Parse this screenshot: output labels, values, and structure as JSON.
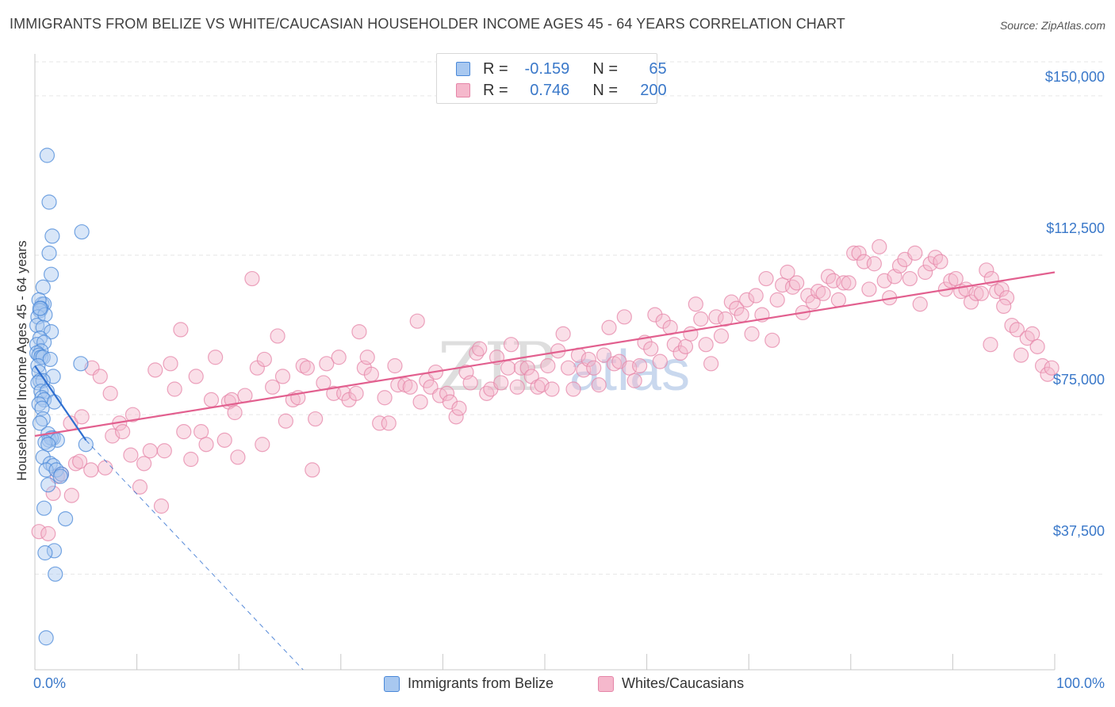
{
  "title": "IMMIGRANTS FROM BELIZE VS WHITE/CAUCASIAN HOUSEHOLDER INCOME AGES 45 - 64 YEARS CORRELATION CHART",
  "source": "Source: ZipAtlas.com",
  "watermark": {
    "zip": "ZIP",
    "atlas": "atlas"
  },
  "colors": {
    "blue_fill": "#a8c8f0",
    "blue_stroke": "#4a88d8",
    "blue_line": "#2f6fd0",
    "pink_fill": "#f5b8cc",
    "pink_stroke": "#e585a8",
    "pink_line": "#e2608f",
    "accent_text": "#3a78c9",
    "grid": "#e6e6e6"
  },
  "legend": {
    "r_label": "R =",
    "n_label": "N =",
    "rows": [
      {
        "series": "Immigrants from Belize",
        "r": "-0.159",
        "n": "65"
      },
      {
        "series": "Whites/Caucasians",
        "r": "0.746",
        "n": "200"
      }
    ]
  },
  "chart_data": {
    "type": "scatter",
    "title": "IMMIGRANTS FROM BELIZE VS WHITE/CAUCASIAN HOUSEHOLDER INCOME AGES 45 - 64 YEARS CORRELATION CHART",
    "xlabel": "",
    "ylabel": "Householder Income Ages 45 - 64 years",
    "xlim": [
      0,
      100
    ],
    "ylim": [
      15000,
      158000
    ],
    "x_tick_labels": [
      "0.0%",
      "100.0%"
    ],
    "y_ticks": [
      37500,
      75000,
      112500,
      150000
    ],
    "y_tick_labels": [
      "$37,500",
      "$75,000",
      "$112,500",
      "$150,000"
    ],
    "grid": true,
    "legend_position": "top-center",
    "series": [
      {
        "name": "Immigrants from Belize",
        "r": -0.159,
        "n": 65,
        "trend": {
          "x0": 0,
          "y0": 86500,
          "x1": 5,
          "y1": 69000,
          "x_dash_end": 26.3,
          "y_dash_end": 15000
        },
        "points": [
          [
            1.2,
            136000
          ],
          [
            1.4,
            125000
          ],
          [
            1.7,
            117000
          ],
          [
            1.4,
            113000
          ],
          [
            1.6,
            108000
          ],
          [
            0.8,
            105000
          ],
          [
            0.7,
            101000
          ],
          [
            0.9,
            101000
          ],
          [
            0.4,
            102000
          ],
          [
            0.6,
            100000
          ],
          [
            0.5,
            99500
          ],
          [
            0.3,
            98000
          ],
          [
            1.0,
            98500
          ],
          [
            0.2,
            96000
          ],
          [
            0.8,
            95500
          ],
          [
            1.6,
            94500
          ],
          [
            0.5,
            93000
          ],
          [
            0.2,
            91500
          ],
          [
            0.9,
            92000
          ],
          [
            0.6,
            90000
          ],
          [
            0.2,
            89500
          ],
          [
            0.4,
            89000
          ],
          [
            0.6,
            88500
          ],
          [
            0.8,
            88500
          ],
          [
            1.5,
            88000
          ],
          [
            0.3,
            86500
          ],
          [
            0.4,
            85000
          ],
          [
            1.8,
            84000
          ],
          [
            0.5,
            83000
          ],
          [
            0.8,
            83000
          ],
          [
            0.3,
            82500
          ],
          [
            0.6,
            80500
          ],
          [
            1.2,
            80500
          ],
          [
            0.7,
            79000
          ],
          [
            0.9,
            78500
          ],
          [
            1.9,
            78000
          ],
          [
            0.4,
            77500
          ],
          [
            0.7,
            76500
          ],
          [
            0.8,
            74000
          ],
          [
            0.5,
            73000
          ],
          [
            1.3,
            70500
          ],
          [
            1.8,
            69500
          ],
          [
            1.4,
            69000
          ],
          [
            1.6,
            69500
          ],
          [
            2.2,
            69000
          ],
          [
            1.0,
            68500
          ],
          [
            1.3,
            68000
          ],
          [
            0.8,
            65000
          ],
          [
            1.5,
            63500
          ],
          [
            1.8,
            63000
          ],
          [
            1.1,
            62000
          ],
          [
            2.1,
            62000
          ],
          [
            2.6,
            61000
          ],
          [
            2.5,
            60500
          ],
          [
            1.3,
            58500
          ],
          [
            0.9,
            53000
          ],
          [
            3.0,
            50500
          ],
          [
            1.9,
            43000
          ],
          [
            1.0,
            42500
          ],
          [
            2.0,
            37500
          ],
          [
            1.1,
            22500
          ],
          [
            4.6,
            118000
          ],
          [
            4.5,
            87000
          ],
          [
            5.0,
            68000
          ],
          [
            0.5,
            100000
          ]
        ]
      },
      {
        "name": "Whites/Caucasians",
        "r": 0.746,
        "n": 200,
        "trend": {
          "x0": 0,
          "y0": 70000,
          "x1": 100,
          "y1": 108500
        },
        "points": [
          [
            0.4,
            47500
          ],
          [
            1.3,
            47000
          ],
          [
            1.8,
            56500
          ],
          [
            2.6,
            61000
          ],
          [
            3.6,
            56000
          ],
          [
            2.2,
            60500
          ],
          [
            4.0,
            63500
          ],
          [
            4.4,
            64000
          ],
          [
            5.5,
            62000
          ],
          [
            6.9,
            62500
          ],
          [
            3.5,
            73000
          ],
          [
            4.6,
            74500
          ],
          [
            5.6,
            86000
          ],
          [
            6.4,
            84000
          ],
          [
            7.4,
            80000
          ],
          [
            7.6,
            70000
          ],
          [
            8.3,
            73000
          ],
          [
            8.6,
            71000
          ],
          [
            9.4,
            65500
          ],
          [
            9.6,
            75000
          ],
          [
            10.3,
            58000
          ],
          [
            10.7,
            63500
          ],
          [
            11.3,
            66500
          ],
          [
            11.8,
            85500
          ],
          [
            12.7,
            66500
          ],
          [
            12.4,
            53500
          ],
          [
            13.3,
            87000
          ],
          [
            13.7,
            81000
          ],
          [
            14.3,
            95000
          ],
          [
            14.6,
            71000
          ],
          [
            15.3,
            64500
          ],
          [
            15.8,
            84000
          ],
          [
            16.3,
            71000
          ],
          [
            16.8,
            68000
          ],
          [
            17.3,
            78500
          ],
          [
            17.7,
            88500
          ],
          [
            18.6,
            69000
          ],
          [
            19.0,
            78000
          ],
          [
            19.3,
            78500
          ],
          [
            19.6,
            75500
          ],
          [
            19.9,
            65000
          ],
          [
            20.6,
            79500
          ],
          [
            21.3,
            107000
          ],
          [
            21.8,
            86000
          ],
          [
            22.3,
            68000
          ],
          [
            22.5,
            88000
          ],
          [
            23.3,
            81500
          ],
          [
            23.8,
            93500
          ],
          [
            24.3,
            84000
          ],
          [
            24.6,
            73500
          ],
          [
            25.3,
            78500
          ],
          [
            25.8,
            79000
          ],
          [
            26.3,
            86500
          ],
          [
            26.7,
            86000
          ],
          [
            27.2,
            62000
          ],
          [
            27.5,
            74000
          ],
          [
            28.3,
            82500
          ],
          [
            28.6,
            87000
          ],
          [
            29.3,
            80000
          ],
          [
            29.8,
            88500
          ],
          [
            30.3,
            80000
          ],
          [
            30.8,
            78500
          ],
          [
            31.5,
            80000
          ],
          [
            31.8,
            94500
          ],
          [
            32.3,
            86000
          ],
          [
            32.6,
            88500
          ],
          [
            33.0,
            84500
          ],
          [
            33.8,
            73000
          ],
          [
            34.3,
            79000
          ],
          [
            34.7,
            73000
          ],
          [
            35.3,
            86500
          ],
          [
            35.6,
            82000
          ],
          [
            36.3,
            82000
          ],
          [
            36.8,
            81500
          ],
          [
            37.5,
            97000
          ],
          [
            37.8,
            78000
          ],
          [
            38.4,
            83000
          ],
          [
            38.8,
            81500
          ],
          [
            39.3,
            85000
          ],
          [
            39.7,
            79500
          ],
          [
            40.4,
            80000
          ],
          [
            40.7,
            78000
          ],
          [
            41.3,
            74500
          ],
          [
            41.6,
            76500
          ],
          [
            42.3,
            85000
          ],
          [
            42.7,
            82500
          ],
          [
            43.3,
            89500
          ],
          [
            43.6,
            90500
          ],
          [
            44.3,
            80000
          ],
          [
            44.7,
            81000
          ],
          [
            45.3,
            88500
          ],
          [
            45.7,
            82500
          ],
          [
            46.4,
            86000
          ],
          [
            46.7,
            91500
          ],
          [
            47.3,
            81500
          ],
          [
            47.7,
            86000
          ],
          [
            48.3,
            86000
          ],
          [
            48.7,
            84000
          ],
          [
            49.3,
            81500
          ],
          [
            49.7,
            82000
          ],
          [
            50.3,
            86500
          ],
          [
            50.7,
            81000
          ],
          [
            51.3,
            90000
          ],
          [
            51.8,
            94000
          ],
          [
            52.3,
            86000
          ],
          [
            52.8,
            81000
          ],
          [
            53.3,
            89000
          ],
          [
            53.8,
            85500
          ],
          [
            54.3,
            88000
          ],
          [
            54.8,
            86000
          ],
          [
            55.3,
            82000
          ],
          [
            55.8,
            89000
          ],
          [
            56.3,
            95500
          ],
          [
            56.8,
            87000
          ],
          [
            57.3,
            87500
          ],
          [
            57.8,
            98000
          ],
          [
            58.3,
            86000
          ],
          [
            58.8,
            83000
          ],
          [
            59.3,
            86500
          ],
          [
            59.8,
            92000
          ],
          [
            60.4,
            90500
          ],
          [
            60.8,
            98500
          ],
          [
            61.3,
            87500
          ],
          [
            61.6,
            97000
          ],
          [
            62.3,
            95500
          ],
          [
            62.7,
            91500
          ],
          [
            63.3,
            89500
          ],
          [
            63.8,
            91000
          ],
          [
            64.3,
            94000
          ],
          [
            64.8,
            101000
          ],
          [
            65.3,
            97500
          ],
          [
            65.8,
            91500
          ],
          [
            66.3,
            87000
          ],
          [
            66.8,
            98000
          ],
          [
            67.3,
            93500
          ],
          [
            67.7,
            97500
          ],
          [
            68.3,
            101500
          ],
          [
            68.8,
            100000
          ],
          [
            69.3,
            98500
          ],
          [
            69.8,
            102000
          ],
          [
            70.3,
            94000
          ],
          [
            70.7,
            103000
          ],
          [
            71.3,
            98500
          ],
          [
            71.7,
            107000
          ],
          [
            72.3,
            92500
          ],
          [
            72.8,
            102000
          ],
          [
            73.3,
            105500
          ],
          [
            73.8,
            108500
          ],
          [
            74.3,
            105000
          ],
          [
            74.7,
            106000
          ],
          [
            75.3,
            99000
          ],
          [
            75.8,
            103000
          ],
          [
            76.3,
            101500
          ],
          [
            76.8,
            104000
          ],
          [
            77.3,
            103500
          ],
          [
            77.8,
            107500
          ],
          [
            78.3,
            106500
          ],
          [
            78.8,
            102000
          ],
          [
            79.3,
            106000
          ],
          [
            79.8,
            106000
          ],
          [
            80.3,
            113000
          ],
          [
            80.8,
            113000
          ],
          [
            81.3,
            111000
          ],
          [
            81.8,
            104500
          ],
          [
            82.3,
            110500
          ],
          [
            82.8,
            114500
          ],
          [
            83.3,
            106500
          ],
          [
            83.8,
            102500
          ],
          [
            84.3,
            107500
          ],
          [
            84.8,
            110000
          ],
          [
            85.3,
            111500
          ],
          [
            85.8,
            107000
          ],
          [
            86.3,
            113000
          ],
          [
            86.8,
            101000
          ],
          [
            87.3,
            108500
          ],
          [
            87.8,
            110500
          ],
          [
            88.3,
            112000
          ],
          [
            88.8,
            111000
          ],
          [
            89.3,
            104500
          ],
          [
            89.8,
            106500
          ],
          [
            90.3,
            107000
          ],
          [
            90.8,
            104000
          ],
          [
            91.3,
            104500
          ],
          [
            91.8,
            101500
          ],
          [
            92.3,
            103500
          ],
          [
            92.8,
            103500
          ],
          [
            93.3,
            109000
          ],
          [
            93.8,
            107000
          ],
          [
            94.3,
            104000
          ],
          [
            94.8,
            104500
          ],
          [
            95.3,
            102500
          ],
          [
            95.8,
            96000
          ],
          [
            96.3,
            95000
          ],
          [
            96.7,
            89000
          ],
          [
            97.3,
            93000
          ],
          [
            97.8,
            94000
          ],
          [
            98.3,
            91000
          ],
          [
            98.8,
            86500
          ],
          [
            99.3,
            84500
          ],
          [
            99.7,
            86000
          ],
          [
            95.0,
            100500
          ],
          [
            93.7,
            91500
          ]
        ]
      }
    ]
  }
}
